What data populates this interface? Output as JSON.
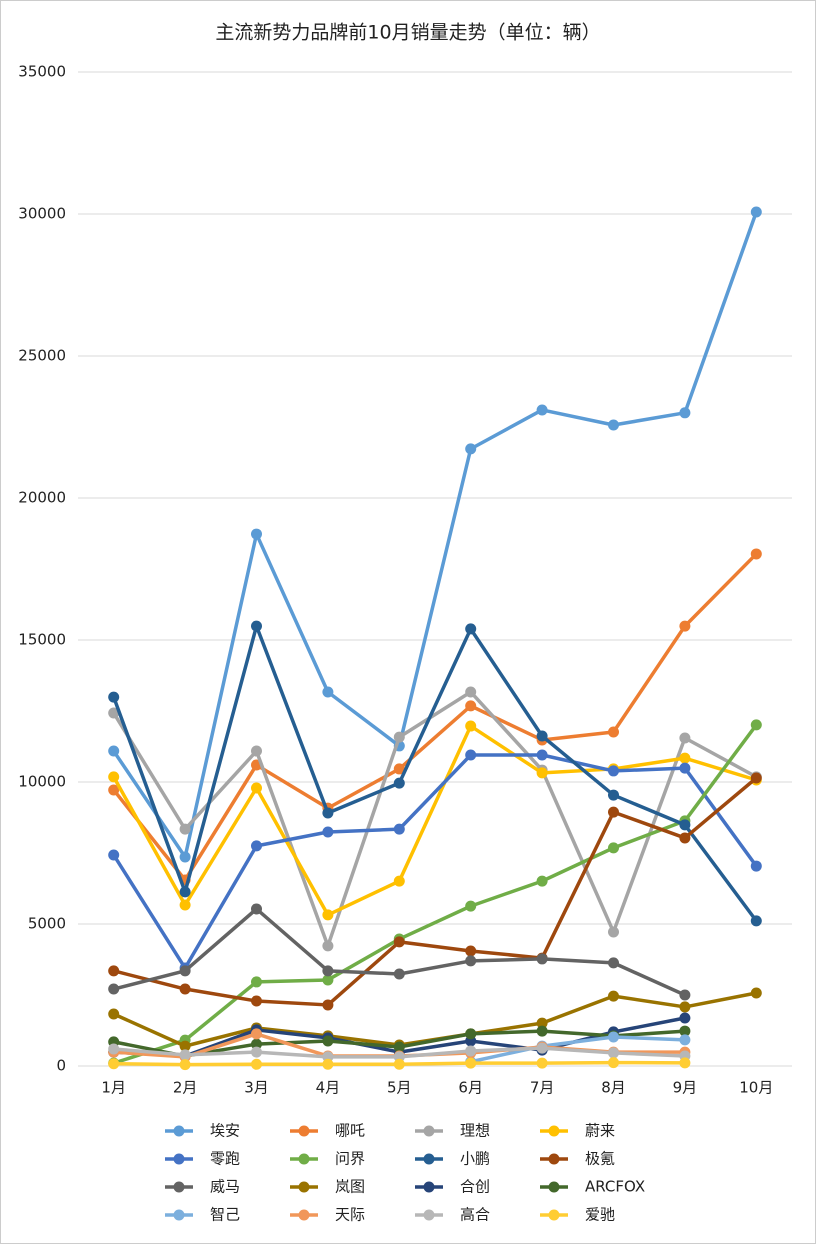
{
  "chart_data": {
    "type": "line",
    "title": "主流新势力品牌前10月销量走势（单位：辆）",
    "categories": [
      "1月",
      "2月",
      "3月",
      "4月",
      "5月",
      "6月",
      "7月",
      "8月",
      "9月",
      "10月"
    ],
    "ylim": [
      0,
      35000
    ],
    "yticks": [
      0,
      5000,
      10000,
      15000,
      20000,
      25000,
      30000,
      35000
    ],
    "grid": true,
    "legend": "bottom",
    "series": [
      {
        "name": "埃安",
        "color": "#5b9bd5",
        "values": [
          11090,
          7360,
          18730,
          13170,
          11270,
          21730,
          23100,
          22570,
          23000,
          30070
        ]
      },
      {
        "name": "哪吒",
        "color": "#ed7d31",
        "values": [
          9720,
          6550,
          10600,
          9080,
          10460,
          12680,
          11480,
          11760,
          15490,
          18030
        ]
      },
      {
        "name": "理想",
        "color": "#a5a5a5",
        "values": [
          12430,
          8340,
          11090,
          4230,
          11580,
          13170,
          10420,
          4720,
          11550,
          10180
        ]
      },
      {
        "name": "蔚来",
        "color": "#ffc000",
        "values": [
          10180,
          5670,
          9790,
          5320,
          6510,
          11970,
          10320,
          10460,
          10840,
          10070
        ]
      },
      {
        "name": "零跑",
        "color": "#4472c4",
        "values": [
          7430,
          3450,
          7750,
          8240,
          8340,
          10950,
          10950,
          10390,
          10490,
          7040
        ]
      },
      {
        "name": "问界",
        "color": "#70ad47",
        "values": [
          100,
          910,
          2960,
          3030,
          4470,
          5630,
          6510,
          7680,
          8630,
          12010
        ]
      },
      {
        "name": "小鹏",
        "color": "#255e91",
        "values": [
          12990,
          6130,
          15490,
          8910,
          9960,
          15390,
          11620,
          9540,
          8490,
          5110
        ]
      },
      {
        "name": "极氪",
        "color": "#9e480e",
        "values": [
          3350,
          2710,
          2290,
          2150,
          4370,
          4050,
          3800,
          8940,
          8030,
          10140
        ]
      },
      {
        "name": "威马",
        "color": "#636363",
        "values": [
          2710,
          3350,
          5530,
          3350,
          3240,
          3700,
          3770,
          3630,
          2500,
          null
        ]
      },
      {
        "name": "岚图",
        "color": "#997300",
        "values": [
          1830,
          700,
          1340,
          1060,
          740,
          1130,
          1510,
          2460,
          2080,
          2570
        ]
      },
      {
        "name": "合创",
        "color": "#264478",
        "values": [
          490,
          350,
          1270,
          990,
          490,
          880,
          560,
          1200,
          1690,
          null
        ]
      },
      {
        "name": "ARCFOX",
        "color": "#43682b",
        "values": [
          850,
          350,
          770,
          880,
          670,
          1130,
          1230,
          1060,
          1230,
          null
        ]
      },
      {
        "name": "智己",
        "color": "#7cafdd",
        "values": [
          null,
          null,
          null,
          null,
          null,
          150,
          700,
          1020,
          920,
          null
        ]
      },
      {
        "name": "天际",
        "color": "#f1975a",
        "values": [
          490,
          320,
          1130,
          350,
          350,
          460,
          670,
          490,
          490,
          null
        ]
      },
      {
        "name": "高合",
        "color": "#b7b7b7",
        "values": [
          600,
          390,
          490,
          320,
          320,
          530,
          630,
          460,
          350,
          null
        ]
      },
      {
        "name": "爱驰",
        "color": "#ffcd33",
        "values": [
          80,
          50,
          60,
          60,
          60,
          100,
          100,
          120,
          110,
          null
        ]
      }
    ]
  }
}
